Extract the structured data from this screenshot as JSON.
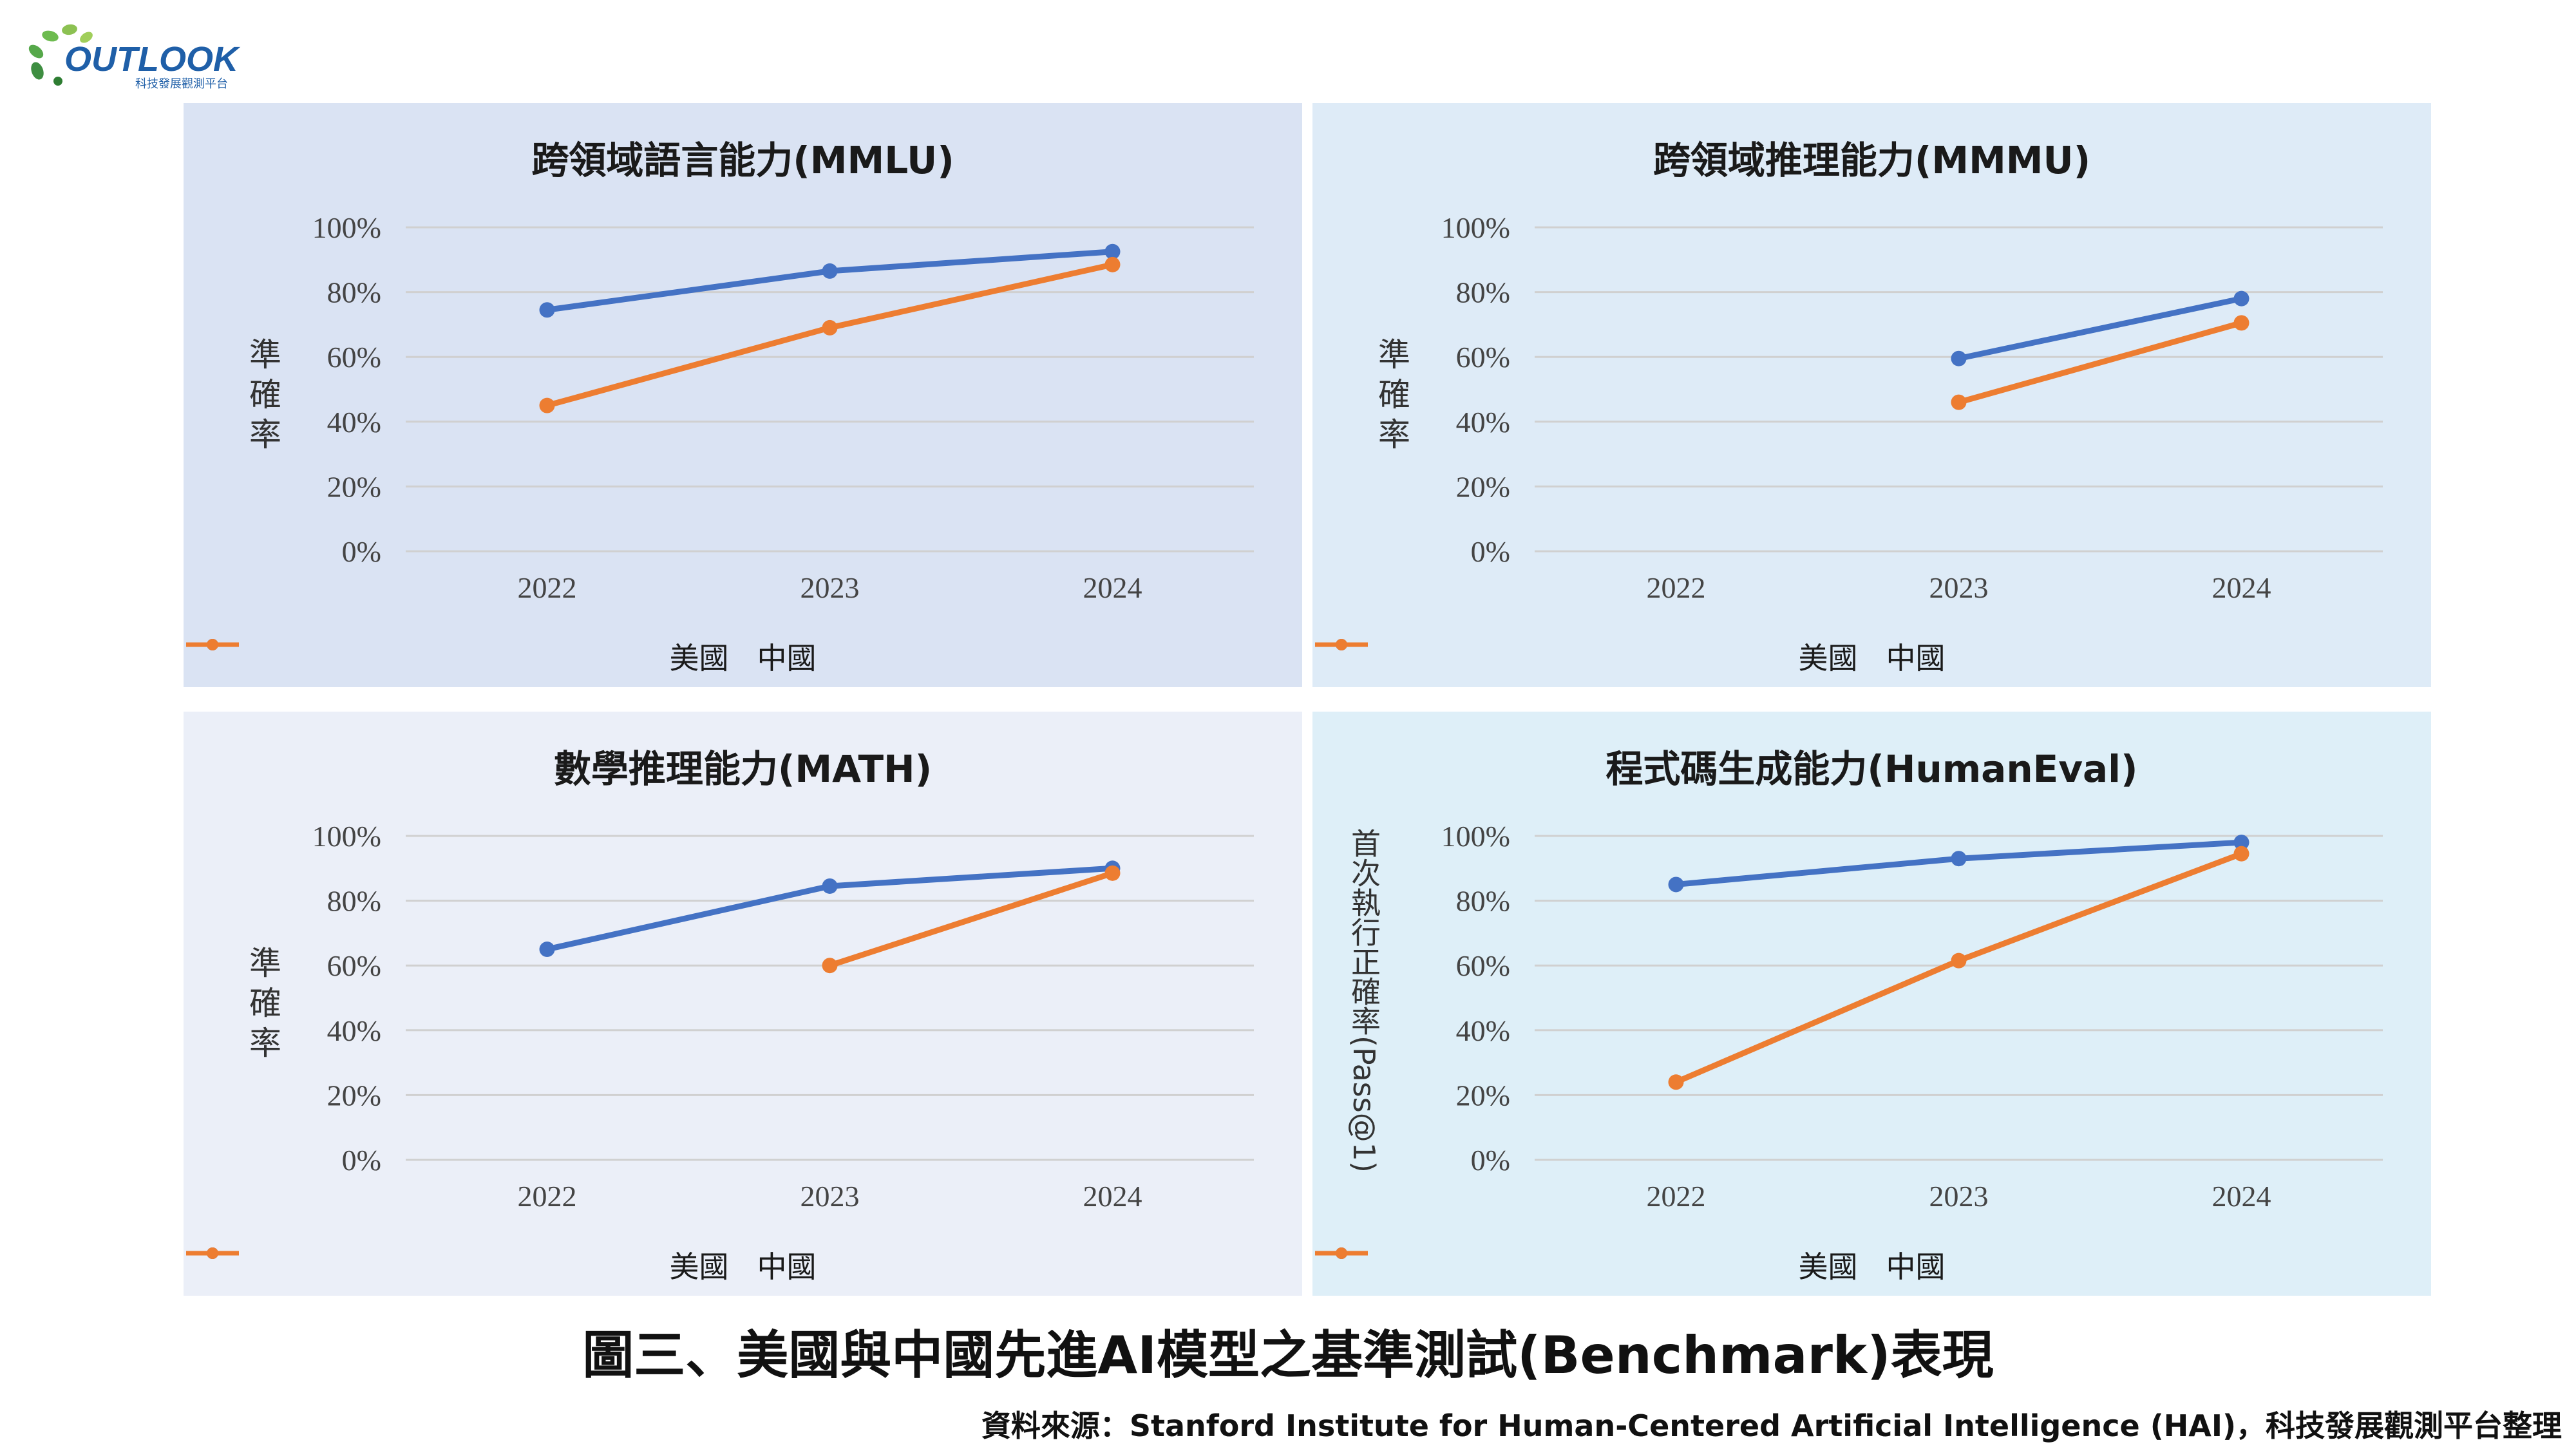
{
  "logo": {
    "text": "OUTLOOK",
    "subtext": "科技發展觀測平台"
  },
  "legend": {
    "us": "美國",
    "cn": "中國"
  },
  "colors": {
    "us": "#4472C4",
    "cn": "#ED7D31",
    "grid": "#D0D0D0",
    "axis_text": "#444444"
  },
  "chart_data": [
    {
      "type": "line",
      "title": "跨領域語言能力(MMLU)",
      "ylabel": "準確率",
      "background": "#DAE3F3",
      "categories": [
        "2022",
        "2023",
        "2024"
      ],
      "yticks": [
        "0%",
        "20%",
        "40%",
        "60%",
        "80%",
        "100%"
      ],
      "ylim": [
        0,
        100
      ],
      "series": [
        {
          "name": "美國",
          "values": [
            74.5,
            86.5,
            92.5
          ]
        },
        {
          "name": "中國",
          "values": [
            45,
            69,
            88.5
          ]
        }
      ]
    },
    {
      "type": "line",
      "title": "跨領域推理能力(MMMU)",
      "ylabel": "準確率",
      "background": "#DEEBF7",
      "categories": [
        "2022",
        "2023",
        "2024"
      ],
      "yticks": [
        "0%",
        "20%",
        "40%",
        "60%",
        "80%",
        "100%"
      ],
      "ylim": [
        0,
        100
      ],
      "series": [
        {
          "name": "美國",
          "values": [
            null,
            59.5,
            78
          ]
        },
        {
          "name": "中國",
          "values": [
            null,
            46,
            70.5
          ]
        }
      ]
    },
    {
      "type": "line",
      "title": "數學推理能力(MATH)",
      "ylabel": "準確率",
      "background": "#EBEFF8",
      "categories": [
        "2022",
        "2023",
        "2024"
      ],
      "yticks": [
        "0%",
        "20%",
        "40%",
        "60%",
        "80%",
        "100%"
      ],
      "ylim": [
        0,
        100
      ],
      "series": [
        {
          "name": "美國",
          "values": [
            65,
            84.5,
            90
          ]
        },
        {
          "name": "中國",
          "values": [
            null,
            60,
            88.5
          ]
        }
      ]
    },
    {
      "type": "line",
      "title": "程式碼生成能力(HumanEval)",
      "ylabel": "首次執行正確率(Pass@1)",
      "background": "#DEEFF8",
      "categories": [
        "2022",
        "2023",
        "2024"
      ],
      "yticks": [
        "0%",
        "20%",
        "40%",
        "60%",
        "80%",
        "100%"
      ],
      "ylim": [
        0,
        100
      ],
      "series": [
        {
          "name": "美國",
          "values": [
            85,
            93,
            98
          ]
        },
        {
          "name": "中國",
          "values": [
            24,
            61.5,
            94.5
          ]
        }
      ]
    }
  ],
  "caption": "圖三、美國與中國先進AI模型之基準測試(Benchmark)表現",
  "source": "資料來源：Stanford Institute for Human-Centered Artificial Intelligence (HAI)，科技發展觀測平台整理"
}
